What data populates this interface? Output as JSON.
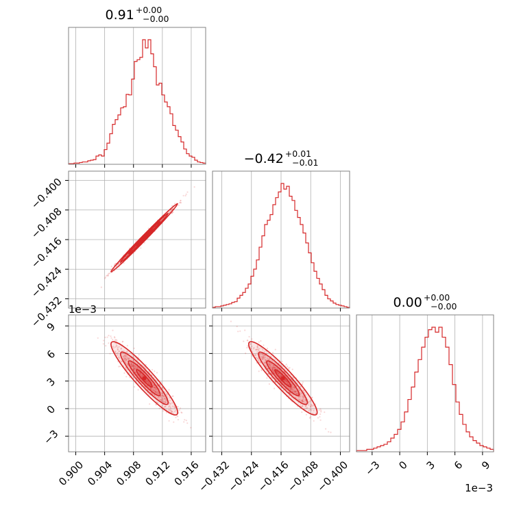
{
  "colors": {
    "accent": "#d62728",
    "grid": "#b0b0b0",
    "frame": "#808080"
  },
  "chart_data": {
    "type": "corner",
    "parameters": [
      {
        "title": {
          "median": "0.91",
          "plus": "+0.00",
          "minus": "−0.00"
        },
        "range": [
          0.899,
          0.918
        ],
        "ticks": [
          0.9,
          0.904,
          0.908,
          0.912,
          0.916
        ],
        "tick_labels": [
          "0.900",
          "0.904",
          "0.908",
          "0.912",
          "0.916"
        ],
        "histogram_center": 0.9095,
        "histogram_sigma": 0.0022
      },
      {
        "title": {
          "median": "−0.42",
          "plus": "+0.01",
          "minus": "−0.01"
        },
        "range": [
          -0.4345,
          -0.3975
        ],
        "ticks": [
          -0.432,
          -0.424,
          -0.416,
          -0.408,
          -0.4
        ],
        "tick_labels": [
          "−0.432",
          "−0.424",
          "−0.416",
          "−0.408",
          "−0.400"
        ],
        "histogram_center": -0.4155,
        "histogram_sigma": 0.0044
      },
      {
        "title": {
          "median": "0.00",
          "plus": "+0.00",
          "minus": "−0.00"
        },
        "range": [
          -0.0047,
          0.0102
        ],
        "ticks": [
          -0.003,
          0.0,
          0.003,
          0.006,
          0.009
        ],
        "tick_labels": [
          "−3",
          "0",
          "3",
          "6",
          "9"
        ],
        "offset_label": "1e−3",
        "histogram_center": 0.0033,
        "histogram_sigma": 0.0019
      }
    ],
    "histogram_heights": [
      [
        1,
        1,
        2,
        2,
        3,
        4,
        4,
        6,
        7,
        8,
        14,
        16,
        14,
        25,
        36,
        52,
        68,
        76,
        84,
        96,
        98,
        119,
        118,
        145,
        175,
        178,
        182,
        212,
        198,
        212,
        188,
        166,
        135,
        138,
        118,
        106,
        98,
        86,
        66,
        58,
        47,
        38,
        26,
        18,
        14,
        12,
        7,
        4,
        3,
        2
      ],
      [
        1,
        2,
        2,
        3,
        4,
        5,
        6,
        8,
        9,
        14,
        18,
        22,
        28,
        34,
        45,
        55,
        68,
        86,
        102,
        118,
        124,
        132,
        146,
        156,
        164,
        176,
        168,
        172,
        158,
        152,
        138,
        128,
        118,
        106,
        92,
        78,
        64,
        52,
        42,
        34,
        26,
        18,
        13,
        10,
        7,
        5,
        4,
        3,
        2,
        1
      ],
      [
        1,
        1,
        1,
        2,
        2,
        3,
        4,
        5,
        6,
        8,
        11,
        14,
        18,
        24,
        32,
        42,
        52,
        64,
        74,
        84,
        92,
        98,
        100,
        96,
        100,
        92,
        84,
        70,
        54,
        40,
        30,
        22,
        16,
        12,
        9,
        7,
        5,
        4,
        3,
        2
      ]
    ],
    "correlations": {
      "p1_p0": 0.995,
      "p2_p0": -0.93,
      "p2_p1": -0.93
    },
    "joint_mean": [
      0.9095,
      -0.4155,
      0.0033
    ],
    "joint_sigma": [
      0.0022,
      0.0044,
      0.0019
    ],
    "grid": true
  }
}
